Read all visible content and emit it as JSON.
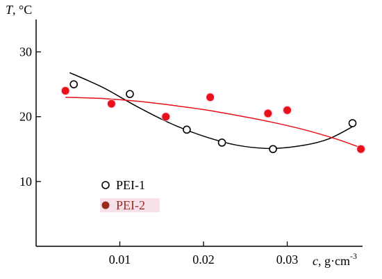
{
  "chart_data": {
    "type": "scatter",
    "y_axis_label": {
      "var": "T",
      "unit": ", °C"
    },
    "x_axis_label": {
      "var": "c",
      "unit": ", g·cm",
      "superscript": "-3"
    },
    "xlim": [
      0,
      0.039
    ],
    "ylim": [
      0,
      35
    ],
    "x_ticks": [
      0.01,
      0.02,
      0.03
    ],
    "x_tick_labels": [
      "0.01",
      "0.02",
      "0.03"
    ],
    "y_ticks": [
      10,
      20,
      30
    ],
    "y_tick_labels": [
      "10",
      "20",
      "30"
    ],
    "grid": false,
    "legend_position": "bottom-left",
    "series": [
      {
        "name": "PEI-1",
        "marker": "open-circle",
        "points": [
          {
            "x": 0.0045,
            "y": 25
          },
          {
            "x": 0.0112,
            "y": 23.5
          },
          {
            "x": 0.018,
            "y": 18
          },
          {
            "x": 0.0222,
            "y": 16
          },
          {
            "x": 0.0283,
            "y": 15
          },
          {
            "x": 0.0378,
            "y": 19
          }
        ],
        "fit": [
          {
            "x": 0.004,
            "y": 26.8
          },
          {
            "x": 0.008,
            "y": 24.5
          },
          {
            "x": 0.012,
            "y": 21.6
          },
          {
            "x": 0.016,
            "y": 19.0
          },
          {
            "x": 0.02,
            "y": 17.0
          },
          {
            "x": 0.024,
            "y": 15.6
          },
          {
            "x": 0.028,
            "y": 15.1
          },
          {
            "x": 0.032,
            "y": 15.6
          },
          {
            "x": 0.035,
            "y": 16.6
          },
          {
            "x": 0.038,
            "y": 18.6
          }
        ]
      },
      {
        "name": "PEI-2",
        "marker": "filled-circle",
        "color": "#e8101b",
        "legend_color": "#9a2a1c",
        "fit_color": "#e8101b",
        "points": [
          {
            "x": 0.0035,
            "y": 24
          },
          {
            "x": 0.009,
            "y": 22
          },
          {
            "x": 0.0155,
            "y": 20
          },
          {
            "x": 0.0208,
            "y": 23
          },
          {
            "x": 0.0277,
            "y": 20.5
          },
          {
            "x": 0.03,
            "y": 21
          },
          {
            "x": 0.0388,
            "y": 15
          }
        ],
        "fit": [
          {
            "x": 0.0035,
            "y": 23.0
          },
          {
            "x": 0.008,
            "y": 22.8
          },
          {
            "x": 0.012,
            "y": 22.4
          },
          {
            "x": 0.016,
            "y": 21.8
          },
          {
            "x": 0.02,
            "y": 21.1
          },
          {
            "x": 0.024,
            "y": 20.2
          },
          {
            "x": 0.028,
            "y": 19.2
          },
          {
            "x": 0.032,
            "y": 18.0
          },
          {
            "x": 0.036,
            "y": 16.5
          },
          {
            "x": 0.0388,
            "y": 15.2
          }
        ]
      }
    ]
  }
}
